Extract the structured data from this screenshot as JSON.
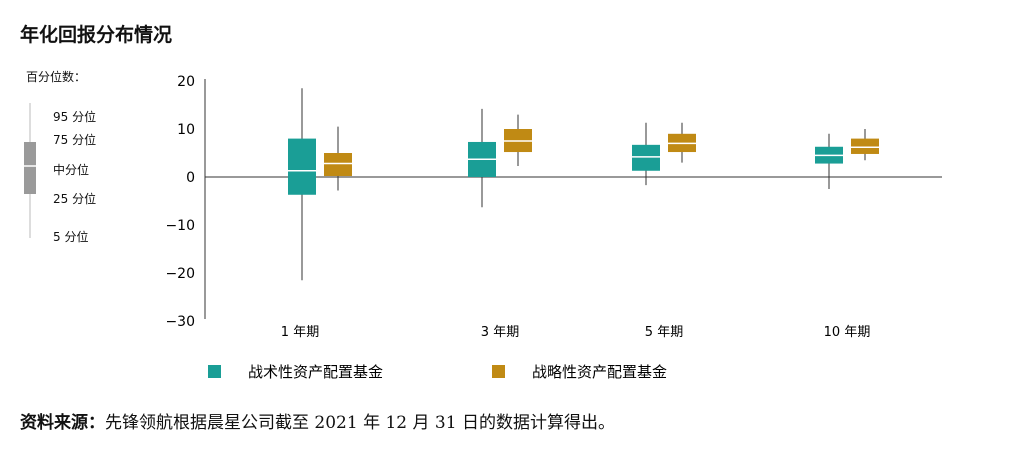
{
  "title": "年化回报分布情况",
  "percentile_legend": {
    "heading": "百分位数：",
    "labels": [
      "95 分位",
      "75 分位",
      "中分位",
      "25 分位",
      "5 分位"
    ]
  },
  "source": {
    "label": "资料来源：",
    "text": "先锋领航根据晨星公司截至 2021 年 12 月 31 日的数据计算得出。"
  },
  "colors": {
    "tactical": "#1a9e96",
    "strategic": "#c08a14",
    "legend_box": "#9a9a9a"
  },
  "chart_data": {
    "type": "boxplot",
    "ylim": [
      -30,
      20
    ],
    "yticks": [
      20,
      10,
      0,
      -10,
      -20,
      -30
    ],
    "ytick_labels": [
      "20",
      "10",
      "0",
      "−10",
      "−20",
      "−30"
    ],
    "categories": [
      "1 年期",
      "3 年期",
      "5 年期",
      "10 年期"
    ],
    "series": [
      {
        "name": "战术性资产配置基金",
        "color": "#1a9e96",
        "boxes": [
          {
            "p5": -21.5,
            "p25": -3.7,
            "median": 1.3,
            "p75": 8.0,
            "p95": 18.5
          },
          {
            "p5": -6.3,
            "p25": 0,
            "median": 3.7,
            "p75": 7.3,
            "p95": 14.2
          },
          {
            "p5": -1.7,
            "p25": 1.3,
            "median": 4.2,
            "p75": 6.7,
            "p95": 11.3
          },
          {
            "p5": -2.5,
            "p25": 2.8,
            "median": 4.5,
            "p75": 6.3,
            "p95": 9.0
          }
        ]
      },
      {
        "name": "战略性资产配置基金",
        "color": "#c08a14",
        "boxes": [
          {
            "p5": -2.8,
            "p25": 0.2,
            "median": 2.8,
            "p75": 5.0,
            "p95": 10.5
          },
          {
            "p5": 2.3,
            "p25": 5.2,
            "median": 7.5,
            "p75": 10.0,
            "p95": 13.0
          },
          {
            "p5": 3.0,
            "p25": 5.2,
            "median": 7.0,
            "p75": 9.0,
            "p95": 11.3
          },
          {
            "p5": 3.5,
            "p25": 4.8,
            "median": 6.2,
            "p75": 8.0,
            "p95": 10.0
          }
        ]
      }
    ]
  }
}
